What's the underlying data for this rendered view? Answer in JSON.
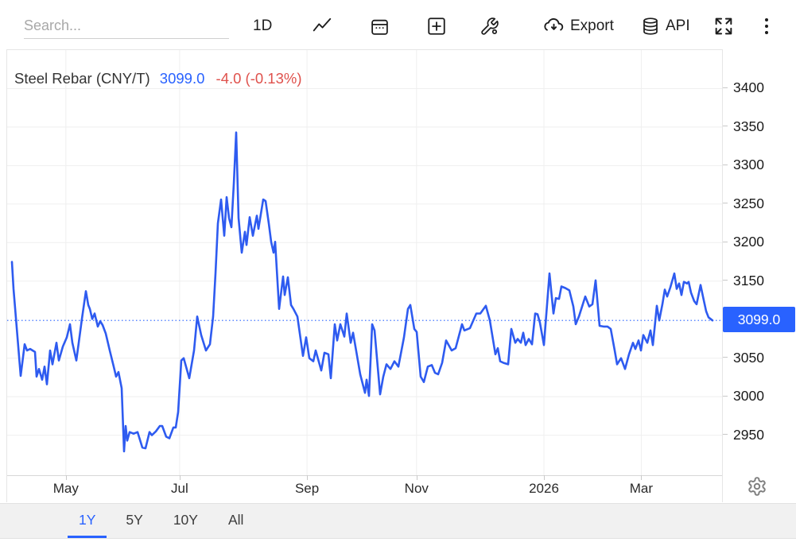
{
  "toolbar": {
    "search": {
      "placeholder": "Search..."
    },
    "interval_button": "1D",
    "export_button": "Export",
    "api_button": "API",
    "icons": [
      "line-chart",
      "calendar",
      "compare-add",
      "tools-wrench",
      "cloud-download",
      "database",
      "fullscreen",
      "more-vertical",
      "settings-gear"
    ]
  },
  "chart_header": {
    "title": "Steel Rebar (CNY/T)",
    "price": "3099.0",
    "change": "-4.0 (-0.13%)"
  },
  "colors": {
    "accent_blue": "#2962ff",
    "line_blue": "#2e5bf0",
    "negative_red": "#df514c",
    "grid": "#efefef",
    "axis_line": "#d6d6d6",
    "range_bar_bg": "#f1f1f1"
  },
  "y_axis": {
    "current_price_badge": "3099.0"
  },
  "range_bar": {
    "options": [
      "1Y",
      "5Y",
      "10Y",
      "All"
    ],
    "active": "1Y"
  },
  "chart_data": {
    "type": "line",
    "title": "Steel Rebar (CNY/T)",
    "series_name": "Steel Rebar",
    "unit": "CNY/T",
    "last_price": 3099.0,
    "change": -4.0,
    "change_percent": -0.13,
    "selected_range": "1Y",
    "x_domain_approx": [
      "2025-04",
      "2026-04"
    ],
    "ylim": [
      2898,
      3450
    ],
    "y_ticks": [
      3400,
      3350,
      3300,
      3250,
      3200,
      3150,
      3050,
      3000,
      2950
    ],
    "x_ticks": [
      {
        "label": "May",
        "f": 0.082
      },
      {
        "label": "Jul",
        "f": 0.241
      },
      {
        "label": "Sep",
        "f": 0.419
      },
      {
        "label": "Nov",
        "f": 0.572
      },
      {
        "label": "2026",
        "f": 0.75
      },
      {
        "label": "Mar",
        "f": 0.886
      }
    ],
    "grid": true,
    "points": [
      [
        6,
        3175
      ],
      [
        8,
        3140
      ],
      [
        17,
        3027
      ],
      [
        22,
        3068
      ],
      [
        25,
        3060
      ],
      [
        29,
        3062
      ],
      [
        32,
        3060
      ],
      [
        35,
        3058
      ],
      [
        37,
        3026
      ],
      [
        40,
        3036
      ],
      [
        44,
        3022
      ],
      [
        47,
        3039
      ],
      [
        50,
        3016
      ],
      [
        54,
        3060
      ],
      [
        57,
        3042
      ],
      [
        62,
        3070
      ],
      [
        65,
        3047
      ],
      [
        70,
        3065
      ],
      [
        75,
        3077
      ],
      [
        79,
        3094
      ],
      [
        82,
        3070
      ],
      [
        87,
        3047
      ],
      [
        90,
        3070
      ],
      [
        94,
        3101
      ],
      [
        99,
        3137
      ],
      [
        102,
        3119
      ],
      [
        104,
        3114
      ],
      [
        107,
        3101
      ],
      [
        110,
        3108
      ],
      [
        114,
        3091
      ],
      [
        117,
        3098
      ],
      [
        120,
        3093
      ],
      [
        124,
        3082
      ],
      [
        129,
        3060
      ],
      [
        134,
        3039
      ],
      [
        137,
        3026
      ],
      [
        140,
        3032
      ],
      [
        144,
        3011
      ],
      [
        147,
        2929
      ],
      [
        149,
        2962
      ],
      [
        151,
        2943
      ],
      [
        154,
        2954
      ],
      [
        159,
        2952
      ],
      [
        164,
        2954
      ],
      [
        170,
        2934
      ],
      [
        174,
        2933
      ],
      [
        179,
        2954
      ],
      [
        182,
        2950
      ],
      [
        187,
        2955
      ],
      [
        192,
        2962
      ],
      [
        195,
        2962
      ],
      [
        200,
        2948
      ],
      [
        204,
        2946
      ],
      [
        209,
        2960
      ],
      [
        212,
        2960
      ],
      [
        215,
        2980
      ],
      [
        219,
        3047
      ],
      [
        222,
        3050
      ],
      [
        229,
        3024
      ],
      [
        235,
        3060
      ],
      [
        239,
        3104
      ],
      [
        244,
        3080
      ],
      [
        250,
        3060
      ],
      [
        255,
        3068
      ],
      [
        259,
        3104
      ],
      [
        262,
        3160
      ],
      [
        265,
        3225
      ],
      [
        269,
        3256
      ],
      [
        273,
        3209
      ],
      [
        276,
        3259
      ],
      [
        279,
        3232
      ],
      [
        282,
        3220
      ],
      [
        285,
        3276
      ],
      [
        288,
        3343
      ],
      [
        291,
        3232
      ],
      [
        295,
        3187
      ],
      [
        299,
        3214
      ],
      [
        301,
        3197
      ],
      [
        305,
        3233
      ],
      [
        309,
        3209
      ],
      [
        314,
        3235
      ],
      [
        316,
        3218
      ],
      [
        322,
        3256
      ],
      [
        325,
        3254
      ],
      [
        329,
        3225
      ],
      [
        332,
        3201
      ],
      [
        335,
        3187
      ],
      [
        337,
        3201
      ],
      [
        342,
        3114
      ],
      [
        347,
        3156
      ],
      [
        349,
        3132
      ],
      [
        353,
        3155
      ],
      [
        357,
        3119
      ],
      [
        360,
        3114
      ],
      [
        365,
        3104
      ],
      [
        372,
        3053
      ],
      [
        376,
        3077
      ],
      [
        380,
        3050
      ],
      [
        385,
        3046
      ],
      [
        388,
        3060
      ],
      [
        395,
        3034
      ],
      [
        399,
        3057
      ],
      [
        404,
        3055
      ],
      [
        407,
        3024
      ],
      [
        412,
        3094
      ],
      [
        415,
        3073
      ],
      [
        419,
        3094
      ],
      [
        424,
        3078
      ],
      [
        427,
        3108
      ],
      [
        432,
        3070
      ],
      [
        435,
        3083
      ],
      [
        444,
        3029
      ],
      [
        450,
        3005
      ],
      [
        452,
        3022
      ],
      [
        455,
        3001
      ],
      [
        459,
        3094
      ],
      [
        462,
        3086
      ],
      [
        469,
        3003
      ],
      [
        473,
        3026
      ],
      [
        477,
        3042
      ],
      [
        482,
        3036
      ],
      [
        487,
        3046
      ],
      [
        492,
        3039
      ],
      [
        499,
        3077
      ],
      [
        504,
        3114
      ],
      [
        507,
        3119
      ],
      [
        512,
        3088
      ],
      [
        515,
        3084
      ],
      [
        520,
        3026
      ],
      [
        524,
        3019
      ],
      [
        529,
        3039
      ],
      [
        534,
        3041
      ],
      [
        538,
        3031
      ],
      [
        542,
        3029
      ],
      [
        547,
        3044
      ],
      [
        552,
        3073
      ],
      [
        559,
        3060
      ],
      [
        564,
        3063
      ],
      [
        572,
        3094
      ],
      [
        575,
        3086
      ],
      [
        582,
        3089
      ],
      [
        590,
        3108
      ],
      [
        595,
        3108
      ],
      [
        602,
        3118
      ],
      [
        607,
        3099
      ],
      [
        614,
        3055
      ],
      [
        617,
        3063
      ],
      [
        620,
        3046
      ],
      [
        624,
        3044
      ],
      [
        630,
        3042
      ],
      [
        634,
        3088
      ],
      [
        639,
        3070
      ],
      [
        642,
        3075
      ],
      [
        646,
        3070
      ],
      [
        649,
        3083
      ],
      [
        652,
        3067
      ],
      [
        656,
        3075
      ],
      [
        660,
        3068
      ],
      [
        664,
        3108
      ],
      [
        667,
        3107
      ],
      [
        670,
        3096
      ],
      [
        675,
        3067
      ],
      [
        682,
        3160
      ],
      [
        687,
        3108
      ],
      [
        690,
        3128
      ],
      [
        694,
        3127
      ],
      [
        697,
        3143
      ],
      [
        702,
        3141
      ],
      [
        707,
        3138
      ],
      [
        712,
        3117
      ],
      [
        715,
        3094
      ],
      [
        719,
        3104
      ],
      [
        727,
        3130
      ],
      [
        732,
        3117
      ],
      [
        736,
        3120
      ],
      [
        740,
        3151
      ],
      [
        745,
        3092
      ],
      [
        750,
        3091
      ],
      [
        755,
        3091
      ],
      [
        759,
        3088
      ],
      [
        764,
        3060
      ],
      [
        767,
        3042
      ],
      [
        772,
        3050
      ],
      [
        777,
        3036
      ],
      [
        782,
        3055
      ],
      [
        787,
        3070
      ],
      [
        790,
        3062
      ],
      [
        794,
        3073
      ],
      [
        797,
        3060
      ],
      [
        800,
        3080
      ],
      [
        805,
        3070
      ],
      [
        809,
        3086
      ],
      [
        812,
        3067
      ],
      [
        817,
        3118
      ],
      [
        820,
        3099
      ],
      [
        824,
        3120
      ],
      [
        827,
        3139
      ],
      [
        830,
        3130
      ],
      [
        834,
        3142
      ],
      [
        839,
        3160
      ],
      [
        842,
        3140
      ],
      [
        845,
        3147
      ],
      [
        848,
        3132
      ],
      [
        851,
        3149
      ],
      [
        855,
        3147
      ],
      [
        857,
        3149
      ],
      [
        860,
        3135
      ],
      [
        864,
        3124
      ],
      [
        867,
        3120
      ],
      [
        872,
        3145
      ],
      [
        875,
        3130
      ],
      [
        879,
        3111
      ],
      [
        882,
        3103
      ],
      [
        887,
        3099
      ]
    ]
  }
}
